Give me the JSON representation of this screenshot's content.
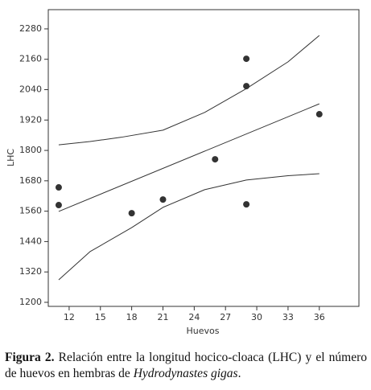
{
  "chart_data": {
    "type": "scatter",
    "xlabel": "Huevos",
    "ylabel": "LHC",
    "xlim": [
      10,
      39.8
    ],
    "ylim": [
      1184,
      2356
    ],
    "xticks": [
      12,
      15,
      18,
      21,
      24,
      27,
      30,
      33,
      36
    ],
    "yticks": [
      1200,
      1320,
      1440,
      1560,
      1680,
      1800,
      1920,
      2040,
      2160,
      2280
    ],
    "color": "#333333",
    "points": {
      "x": [
        11,
        11,
        18,
        21,
        26,
        29,
        29,
        29,
        36
      ],
      "y": [
        1654,
        1584,
        1552,
        1606,
        1765,
        2162,
        2054,
        1587,
        1943
      ]
    },
    "fit_line": {
      "x": [
        11,
        36
      ],
      "y": [
        1559,
        1984
      ]
    },
    "upper_band": {
      "x": [
        11,
        14,
        17,
        21,
        25,
        29,
        33,
        36
      ],
      "y": [
        1822,
        1835,
        1852,
        1880,
        1950,
        2044,
        2150,
        2254
      ]
    },
    "lower_band": {
      "x": [
        11,
        14,
        18,
        21,
        25,
        29,
        33,
        36
      ],
      "y": [
        1289,
        1400,
        1495,
        1575,
        1645,
        1683,
        1700,
        1708
      ]
    }
  },
  "caption": {
    "label": "Figura 2.",
    "text": " Relación entre la longitud hocico-cloaca (LHC) y el número de huevos en hembras de ",
    "species": "Hydrodynastes gigas",
    "end": "."
  }
}
